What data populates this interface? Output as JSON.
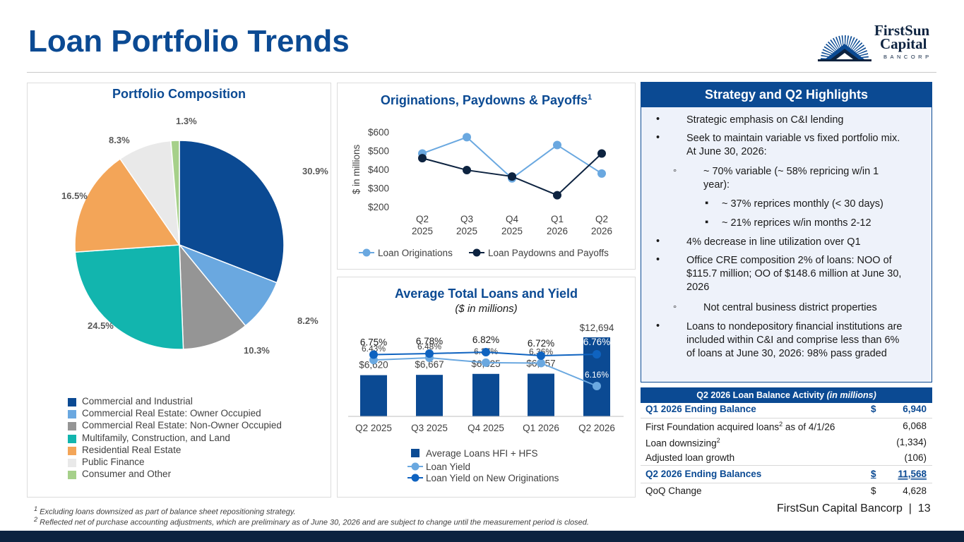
{
  "title": "Loan Portfolio Trends",
  "logo": {
    "line1": "FirstSun",
    "line2": "Capital",
    "line3": "BANCORP"
  },
  "composition": {
    "title": "Portfolio Composition",
    "slices": [
      {
        "label": "Commercial and Industrial",
        "pct_label": "30.9%",
        "value": 30.9,
        "color": "#0b4a93"
      },
      {
        "label": "Commercial Real Estate: Owner Occupied",
        "pct_label": "8.2%",
        "value": 8.2,
        "color": "#6aa8e0"
      },
      {
        "label": "Commercial Real Estate: Non-Owner Occupied",
        "pct_label": "10.3%",
        "value": 10.3,
        "color": "#959595"
      },
      {
        "label": "Multifamily, Construction, and Land",
        "pct_label": "24.5%",
        "value": 24.5,
        "color": "#12b5ae"
      },
      {
        "label": "Residential Real Estate",
        "pct_label": "16.5%",
        "value": 16.5,
        "color": "#f3a558"
      },
      {
        "label": "Public Finance",
        "pct_label": "8.3%",
        "value": 8.3,
        "color": "#e9e9e9"
      },
      {
        "label": "Consumer and Other",
        "pct_label": "1.3%",
        "value": 1.3,
        "color": "#a6d08a"
      }
    ]
  },
  "originations": {
    "title": "Originations, Paydowns & Payoffs",
    "title_sup": "1",
    "ylabel": "$ in millions",
    "yticks": [
      "$200",
      "$300",
      "$400",
      "$500",
      "$600"
    ],
    "categories": [
      [
        "Q2",
        "2025"
      ],
      [
        "Q3",
        "2025"
      ],
      [
        "Q4",
        "2025"
      ],
      [
        "Q1",
        "2026"
      ],
      [
        "Q2",
        "2026"
      ]
    ],
    "legend": [
      "Loan Originations",
      "Loan Paydowns and Payoffs"
    ]
  },
  "avgloans": {
    "title": "Average Total Loans and Yield",
    "subtitle": "($ in millions)",
    "categories": [
      "Q2 2025",
      "Q3 2025",
      "Q4 2025",
      "Q1 2026",
      "Q2 2026"
    ],
    "bar_labels": [
      "$6,620",
      "$6,667",
      "$6,825",
      "$6,857",
      "$12,694"
    ],
    "yield_labels": [
      "6.43%",
      "6.48%",
      "6.37%",
      "6.36%",
      "6.16%"
    ],
    "new_yield_labels": [
      "6.75%",
      "6.78%",
      "6.82%",
      "6.72%",
      "6.76%"
    ],
    "legend": [
      "Average Loans HFI + HFS",
      "Loan Yield",
      "Loan Yield on New Originations"
    ]
  },
  "chart_data": [
    {
      "type": "pie",
      "title": "Portfolio Composition",
      "categories": [
        "Commercial and Industrial",
        "Commercial Real Estate: Owner Occupied",
        "Commercial Real Estate: Non-Owner Occupied",
        "Multifamily, Construction, and Land",
        "Residential Real Estate",
        "Public Finance",
        "Consumer and Other"
      ],
      "values": [
        30.9,
        8.2,
        10.3,
        24.5,
        16.5,
        8.3,
        1.3
      ],
      "legend": "bottom"
    },
    {
      "type": "line",
      "title": "Originations, Paydowns & Payoffs",
      "ylabel": "$ in millions",
      "categories": [
        "Q2 2025",
        "Q3 2025",
        "Q4 2025",
        "Q1 2026",
        "Q2 2026"
      ],
      "ylim": [
        200,
        600
      ],
      "series": [
        {
          "name": "Loan Originations",
          "values": [
            485,
            572,
            352,
            530,
            378
          ],
          "color": "#6aa8e0"
        },
        {
          "name": "Loan Paydowns and Payoffs",
          "values": [
            460,
            396,
            362,
            262,
            485
          ],
          "color": "#0d2340"
        }
      ],
      "legend": "bottom"
    },
    {
      "type": "bar",
      "title": "Average Total Loans and Yield",
      "subtitle": "($ in millions)",
      "categories": [
        "Q2 2025",
        "Q3 2025",
        "Q4 2025",
        "Q1 2026",
        "Q2 2026"
      ],
      "series": [
        {
          "name": "Average Loans HFI + HFS",
          "type": "bar",
          "values": [
            6620,
            6667,
            6825,
            6857,
            12694
          ],
          "color": "#0b4a93"
        },
        {
          "name": "Loan Yield",
          "type": "line",
          "values": [
            6.43,
            6.48,
            6.37,
            6.36,
            6.16
          ],
          "color": "#6aa8e0"
        },
        {
          "name": "Loan Yield on New Originations",
          "type": "line",
          "values": [
            6.75,
            6.78,
            6.82,
            6.72,
            6.76
          ],
          "color": "#0f63c0"
        }
      ],
      "legend": "bottom"
    }
  ],
  "highlights": {
    "title": "Strategy and Q2 Highlights",
    "items": [
      {
        "bullet": "•",
        "lines": [
          "Strategic emphasis on C&I lending"
        ]
      },
      {
        "bullet": "•",
        "lines": [
          "Seek to maintain variable vs fixed portfolio mix.",
          "At June 30, 2026:"
        ]
      },
      {
        "bullet": "◦",
        "lines": [
          "~ 70% variable (~ 58% repricing w/in 1",
          "year):"
        ]
      },
      {
        "bullet": "▪",
        "lines": [
          "~ 37% reprices monthly (< 30 days)"
        ]
      },
      {
        "bullet": "▪",
        "lines": [
          "~ 21% reprices w/in months 2-12"
        ]
      },
      {
        "bullet": "•",
        "lines": [
          "4% decrease in line utilization over Q1"
        ]
      },
      {
        "bullet": "•",
        "lines": [
          "Office CRE composition 2% of loans: NOO of",
          "$115.7 million; OO of $148.6 million at June 30,",
          "2026"
        ]
      },
      {
        "bullet": "◦",
        "lines": [
          "Not central business district properties"
        ]
      },
      {
        "bullet": "•",
        "lines": [
          "Loans to nondepository financial institutions are",
          "included within C&I and comprise less than 6%",
          "of loans at June 30, 2026: 98% pass graded"
        ]
      }
    ]
  },
  "table": {
    "title": "Q2 2026 Loan Balance Activity",
    "title_italic": "(in millions)",
    "rows": [
      {
        "label": "Q1 2026 Ending Balance",
        "sup": "",
        "label_rest": "",
        "cur": "$",
        "value": "6,940"
      },
      {
        "label": "First Foundation acquired loans",
        "sup": "2",
        "label_rest": " as of 4/1/26",
        "cur": "",
        "value": "6,068"
      },
      {
        "label": "Loan downsizing",
        "sup": "2",
        "label_rest": "",
        "cur": "",
        "value": "(1,334)"
      },
      {
        "label": "Adjusted loan growth",
        "sup": "",
        "label_rest": "",
        "cur": "",
        "value": "(106)"
      },
      {
        "label": "Q2 2026 Ending Balances",
        "sup": "",
        "label_rest": "",
        "cur": "$",
        "value": "11,568"
      },
      {
        "label": "QoQ Change",
        "sup": "",
        "label_rest": "",
        "cur": "$",
        "value": "4,628"
      }
    ]
  },
  "footnotes": [
    {
      "sup": "1",
      "text": " Excluding loans downsized as part of balance sheet repositioning strategy."
    },
    {
      "sup": "2",
      "text": " Reflected net of purchase accounting adjustments, which are preliminary as of June 30, 2026 and are subject to change until the measurement period is closed."
    }
  ],
  "page_footer": "FirstSun Capital Bancorp  |  13"
}
